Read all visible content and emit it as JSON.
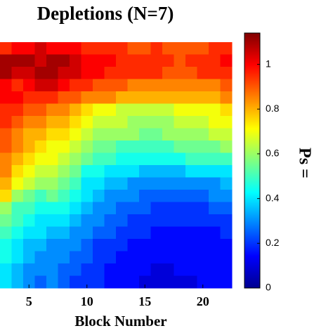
{
  "chart_data": {
    "type": "heatmap",
    "title": "Depletions (N=7)",
    "xlabel": "Block Number",
    "colorbar_label": "Ps =",
    "colormap": "jet",
    "x": [
      3,
      4,
      5,
      6,
      7,
      8,
      9,
      10,
      11,
      12,
      13,
      14,
      15,
      16,
      17,
      18,
      19,
      20,
      21,
      22
    ],
    "xlim": [
      2.5,
      22.5
    ],
    "xticks": [
      5,
      10,
      15,
      20
    ],
    "clim": [
      0,
      1.14
    ],
    "cticks": [
      0,
      0.2,
      0.4,
      0.6,
      0.8,
      1
    ],
    "z": [
      [
        0.95,
        1.0,
        1.0,
        1.05,
        1.0,
        1.0,
        1.0,
        0.95,
        0.95,
        0.95,
        0.95,
        0.9,
        0.9,
        0.95,
        0.9,
        0.9,
        0.9,
        0.9,
        0.95,
        0.95
      ],
      [
        1.1,
        1.1,
        1.1,
        1.05,
        1.1,
        1.1,
        1.05,
        1.0,
        1.0,
        1.0,
        0.95,
        0.95,
        0.95,
        0.95,
        0.95,
        0.9,
        0.95,
        0.95,
        0.95,
        1.0
      ],
      [
        1.1,
        1.05,
        1.05,
        1.1,
        1.1,
        1.05,
        1.05,
        1.0,
        1.0,
        0.95,
        0.95,
        0.95,
        0.95,
        0.95,
        0.9,
        0.9,
        0.9,
        0.95,
        0.95,
        0.95
      ],
      [
        1.0,
        0.95,
        1.0,
        1.05,
        1.05,
        1.0,
        0.95,
        0.95,
        0.9,
        0.9,
        0.9,
        0.85,
        0.85,
        0.85,
        0.85,
        0.85,
        0.85,
        0.85,
        0.85,
        0.9
      ],
      [
        1.0,
        1.0,
        0.95,
        0.95,
        0.95,
        0.9,
        0.9,
        0.85,
        0.85,
        0.85,
        0.8,
        0.8,
        0.8,
        0.8,
        0.8,
        0.8,
        0.8,
        0.8,
        0.8,
        0.85
      ],
      [
        0.95,
        0.95,
        0.9,
        0.9,
        0.85,
        0.85,
        0.8,
        0.75,
        0.7,
        0.7,
        0.65,
        0.65,
        0.65,
        0.65,
        0.65,
        0.7,
        0.7,
        0.7,
        0.7,
        0.75
      ],
      [
        0.95,
        0.9,
        0.85,
        0.85,
        0.8,
        0.8,
        0.75,
        0.7,
        0.65,
        0.65,
        0.65,
        0.6,
        0.6,
        0.6,
        0.6,
        0.65,
        0.65,
        0.65,
        0.7,
        0.7
      ],
      [
        0.9,
        0.85,
        0.8,
        0.8,
        0.75,
        0.75,
        0.7,
        0.65,
        0.6,
        0.6,
        0.6,
        0.6,
        0.55,
        0.55,
        0.6,
        0.6,
        0.6,
        0.6,
        0.65,
        0.65
      ],
      [
        0.9,
        0.85,
        0.8,
        0.75,
        0.7,
        0.7,
        0.65,
        0.6,
        0.55,
        0.55,
        0.5,
        0.5,
        0.5,
        0.5,
        0.5,
        0.55,
        0.55,
        0.55,
        0.55,
        0.6
      ],
      [
        0.85,
        0.8,
        0.75,
        0.7,
        0.7,
        0.65,
        0.6,
        0.55,
        0.5,
        0.5,
        0.45,
        0.45,
        0.45,
        0.45,
        0.45,
        0.45,
        0.5,
        0.5,
        0.5,
        0.5
      ],
      [
        0.85,
        0.75,
        0.7,
        0.65,
        0.65,
        0.6,
        0.55,
        0.45,
        0.45,
        0.4,
        0.4,
        0.4,
        0.35,
        0.35,
        0.35,
        0.35,
        0.4,
        0.4,
        0.4,
        0.4
      ],
      [
        0.8,
        0.7,
        0.65,
        0.6,
        0.6,
        0.55,
        0.5,
        0.4,
        0.4,
        0.35,
        0.35,
        0.3,
        0.3,
        0.3,
        0.3,
        0.3,
        0.3,
        0.3,
        0.3,
        0.35
      ],
      [
        0.75,
        0.6,
        0.55,
        0.5,
        0.55,
        0.5,
        0.45,
        0.4,
        0.35,
        0.3,
        0.3,
        0.3,
        0.25,
        0.25,
        0.25,
        0.25,
        0.25,
        0.25,
        0.3,
        0.3
      ],
      [
        0.6,
        0.5,
        0.5,
        0.45,
        0.45,
        0.45,
        0.4,
        0.35,
        0.3,
        0.3,
        0.25,
        0.25,
        0.25,
        0.2,
        0.2,
        0.2,
        0.2,
        0.2,
        0.25,
        0.25
      ],
      [
        0.55,
        0.5,
        0.45,
        0.4,
        0.4,
        0.4,
        0.35,
        0.3,
        0.3,
        0.25,
        0.25,
        0.2,
        0.2,
        0.2,
        0.2,
        0.2,
        0.2,
        0.2,
        0.2,
        0.2
      ],
      [
        0.5,
        0.45,
        0.4,
        0.4,
        0.35,
        0.35,
        0.3,
        0.3,
        0.25,
        0.25,
        0.2,
        0.2,
        0.2,
        0.15,
        0.15,
        0.15,
        0.15,
        0.15,
        0.15,
        0.2
      ],
      [
        0.45,
        0.4,
        0.35,
        0.35,
        0.3,
        0.3,
        0.3,
        0.25,
        0.2,
        0.2,
        0.2,
        0.15,
        0.15,
        0.15,
        0.15,
        0.15,
        0.15,
        0.15,
        0.15,
        0.15
      ],
      [
        0.45,
        0.4,
        0.35,
        0.3,
        0.3,
        0.3,
        0.25,
        0.25,
        0.2,
        0.2,
        0.15,
        0.15,
        0.15,
        0.15,
        0.15,
        0.15,
        0.15,
        0.15,
        0.15,
        0.15
      ],
      [
        0.4,
        0.35,
        0.3,
        0.3,
        0.3,
        0.25,
        0.25,
        0.2,
        0.2,
        0.15,
        0.15,
        0.15,
        0.15,
        0.1,
        0.1,
        0.15,
        0.15,
        0.15,
        0.15,
        0.15
      ],
      [
        0.4,
        0.35,
        0.3,
        0.25,
        0.3,
        0.25,
        0.2,
        0.2,
        0.2,
        0.15,
        0.15,
        0.15,
        0.1,
        0.1,
        0.1,
        0.1,
        0.1,
        0.15,
        0.15,
        0.15
      ]
    ]
  }
}
